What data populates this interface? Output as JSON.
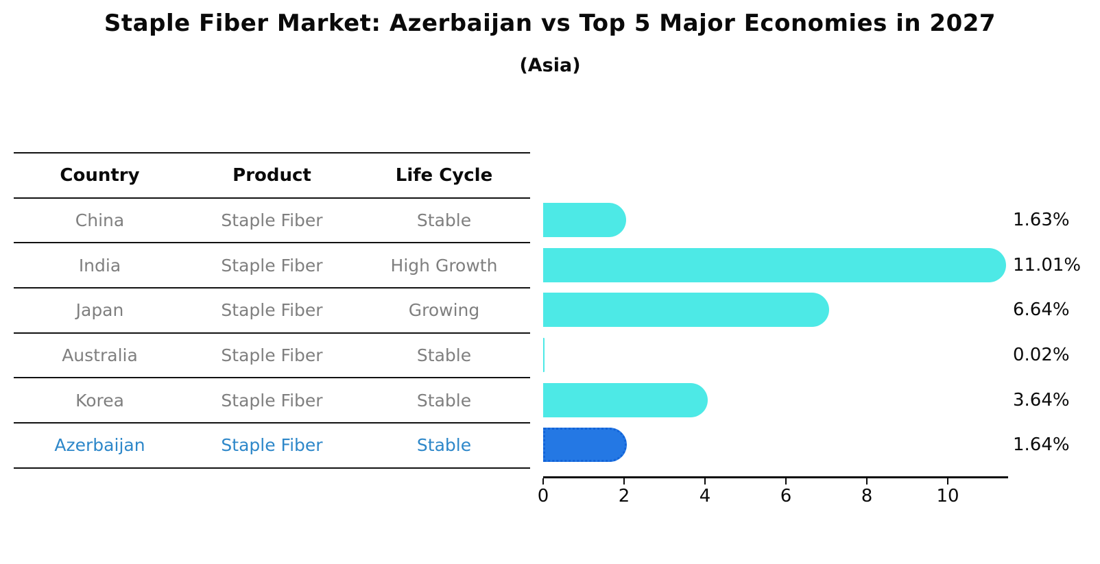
{
  "title": "Staple Fiber Market: Azerbaijan vs Top 5 Major Economies in 2027",
  "subtitle": "(Asia)",
  "table": {
    "headers": [
      "Country",
      "Product",
      "Life Cycle"
    ],
    "rows": [
      {
        "country": "China",
        "product": "Staple Fiber",
        "life_cycle": "Stable",
        "highlight": false
      },
      {
        "country": "India",
        "product": "Staple Fiber",
        "life_cycle": "High Growth",
        "highlight": false
      },
      {
        "country": "Japan",
        "product": "Staple Fiber",
        "life_cycle": "Growing",
        "highlight": false
      },
      {
        "country": "Australia",
        "product": "Staple Fiber",
        "life_cycle": "Stable",
        "highlight": false
      },
      {
        "country": "Korea",
        "product": "Staple Fiber",
        "life_cycle": "Stable",
        "highlight": false
      },
      {
        "country": "Azerbaijan",
        "product": "Staple Fiber",
        "life_cycle": "Stable",
        "highlight": true
      }
    ]
  },
  "chart_data": {
    "type": "bar",
    "orientation": "horizontal",
    "title": "Staple Fiber Market: Azerbaijan vs Top 5 Major Economies in 2027 (Asia)",
    "categories": [
      "China",
      "India",
      "Japan",
      "Australia",
      "Korea",
      "Azerbaijan"
    ],
    "values": [
      1.63,
      11.01,
      6.64,
      0.02,
      3.64,
      1.64
    ],
    "value_labels": [
      "1.63%",
      "11.01%",
      "6.64%",
      "0.02%",
      "3.64%",
      "1.64%"
    ],
    "xlabel": "",
    "ylabel": "",
    "xticks": [
      0,
      2,
      4,
      6,
      8,
      10
    ],
    "xlim": [
      0,
      11.56
    ],
    "grid": false,
    "legend": false,
    "highlight_index": 5,
    "colors": {
      "bar": "#4de9e6",
      "highlight_bar": "#2478e4",
      "highlight_bar_border": "#1263d8",
      "value_label_text": "#0a0a0a",
      "row_text": "#7f7f7f",
      "highlight_row_text": "#2d87c9",
      "axis": "#0a0a0a"
    }
  }
}
